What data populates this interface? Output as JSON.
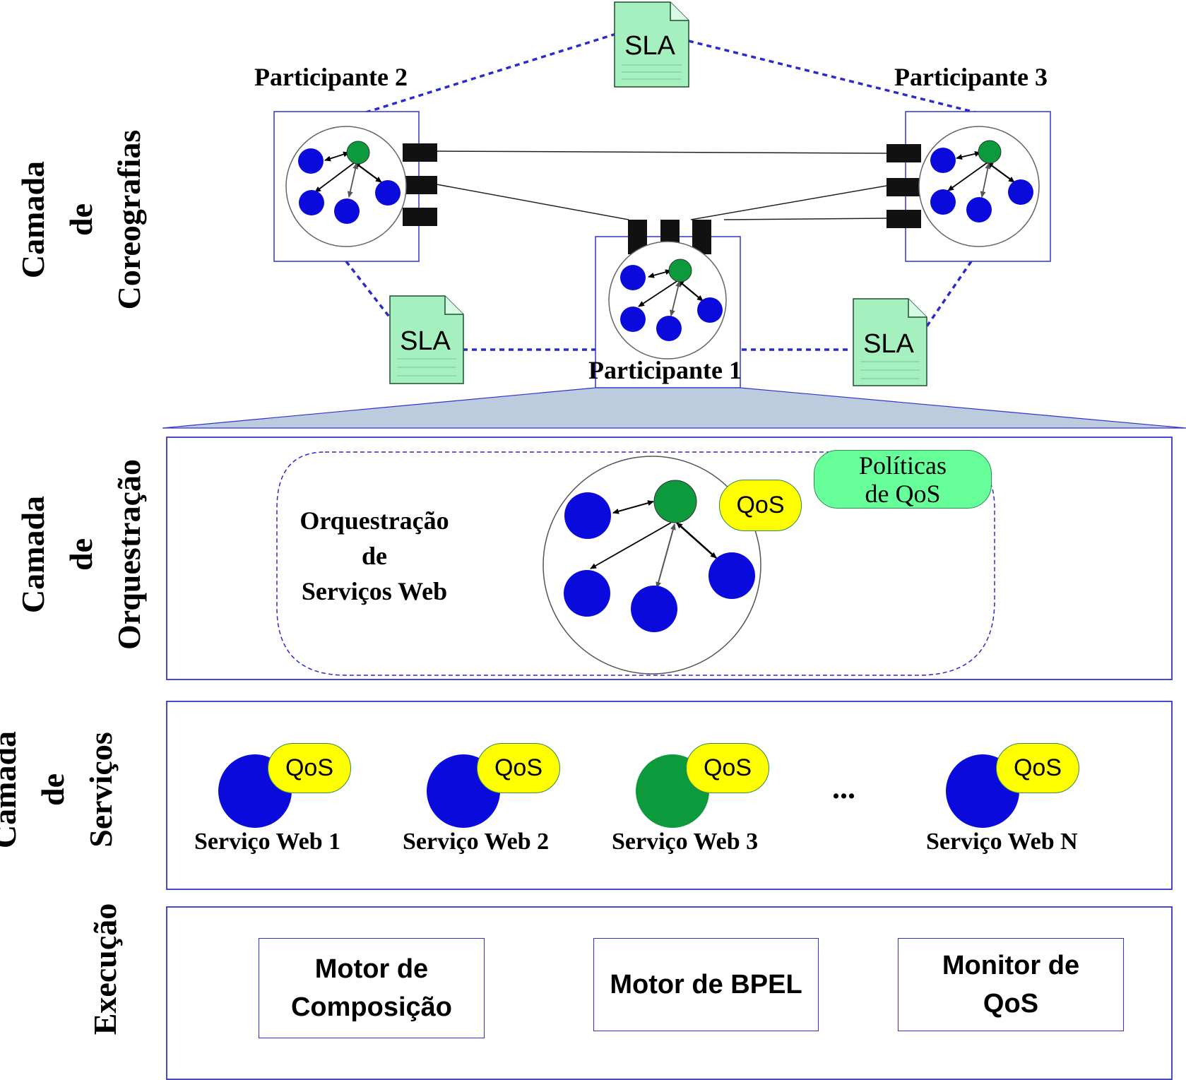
{
  "colors": {
    "service_blue": "#0a0adc",
    "orchestrator_green": "#0c9a3c",
    "qos_yellow": "#ffff00",
    "policy_green": "#66ff99",
    "sla_green": "#a6f0c0",
    "frame_blue": "#3333cc",
    "fan_fill": "#bccbdd"
  },
  "layers": {
    "choreography": {
      "line1": "Camada",
      "line2": "de",
      "line3": "Coreografias"
    },
    "orchestration": {
      "line1": "Camada",
      "line2": "de",
      "line3": "Orquestração"
    },
    "services": {
      "line1": "Camada",
      "line2": "de",
      "line3": "Serviços"
    },
    "execution": {
      "line1": "Execução"
    }
  },
  "participants": {
    "p1": "Participante 1",
    "p2": "Participante 2",
    "p3": "Participante 3"
  },
  "sla": {
    "label": "SLA"
  },
  "orchestration": {
    "title_line1": "Orquestração",
    "title_line2": "de",
    "title_line3": "Serviços Web",
    "qos": "QoS",
    "policies_line1": "Políticas",
    "policies_line2": "de QoS"
  },
  "services": {
    "items": [
      {
        "label": "Serviço Web 1",
        "qos": "QoS",
        "color": "#0a0adc"
      },
      {
        "label": "Serviço Web 2",
        "qos": "QoS",
        "color": "#0a0adc"
      },
      {
        "label": "Serviço Web 3",
        "qos": "QoS",
        "color": "#0c9a3c"
      },
      {
        "label": "Serviço Web N",
        "qos": "QoS",
        "color": "#0a0adc"
      }
    ],
    "ellipsis": "..."
  },
  "execution": {
    "engine1_line1": "Motor de",
    "engine1_line2": "Composição",
    "engine2": "Motor de BPEL",
    "engine3_line1": "Monitor de",
    "engine3_line2": "QoS"
  }
}
